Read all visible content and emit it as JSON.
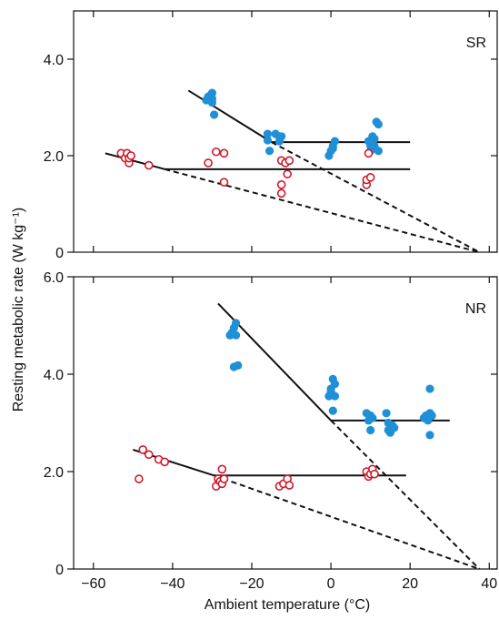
{
  "chart_data": [
    {
      "panel": "SR",
      "type": "scatter",
      "label": "SR",
      "xlim": [
        -65,
        42
      ],
      "ylim": [
        0,
        5.0
      ],
      "yticks": [
        0,
        2.0,
        4.0
      ],
      "ytick_labels": [
        "0",
        "2.0",
        "4.0"
      ],
      "series": [
        {
          "style": "filled",
          "color": "#1f8fd8",
          "points": [
            [
              -31.5,
              3.15
            ],
            [
              -31,
              3.22
            ],
            [
              -30.5,
              3.25
            ],
            [
              -30,
              3.3
            ],
            [
              -30,
              3.1
            ],
            [
              -30,
              3.18
            ],
            [
              -29.5,
              2.85
            ],
            [
              -16,
              2.45
            ],
            [
              -16,
              2.32
            ],
            [
              -15.5,
              2.1
            ],
            [
              -14,
              2.45
            ],
            [
              -13,
              2.4
            ],
            [
              -13,
              2.3
            ],
            [
              -12.5,
              2.4
            ],
            [
              0,
              2.1
            ],
            [
              0.5,
              2.2
            ],
            [
              0.5,
              2.15
            ],
            [
              1,
              2.3
            ],
            [
              -0.5,
              2.0
            ],
            [
              9.5,
              2.3
            ],
            [
              10,
              2.2
            ],
            [
              10.5,
              2.4
            ],
            [
              11,
              2.35
            ],
            [
              11.5,
              2.7
            ],
            [
              12,
              2.65
            ],
            [
              12,
              2.1
            ],
            [
              11,
              2.2
            ],
            [
              10,
              2.1
            ]
          ]
        },
        {
          "style": "open",
          "color": "#d0182a",
          "points": [
            [
              -53,
              2.05
            ],
            [
              -52,
              1.95
            ],
            [
              -51.5,
              2.05
            ],
            [
              -51,
              1.85
            ],
            [
              -51,
              1.95
            ],
            [
              -50.5,
              2.0
            ],
            [
              -46,
              1.8
            ],
            [
              -31,
              1.85
            ],
            [
              -29,
              2.08
            ],
            [
              -27,
              2.05
            ],
            [
              -27,
              1.45
            ],
            [
              -12.5,
              1.9
            ],
            [
              -12.5,
              1.4
            ],
            [
              -12.5,
              1.22
            ],
            [
              -11.5,
              1.85
            ],
            [
              -11,
              1.62
            ],
            [
              -10.5,
              1.9
            ],
            [
              9,
              1.4
            ],
            [
              9,
              1.5
            ],
            [
              9.5,
              2.05
            ],
            [
              10,
              1.55
            ]
          ]
        }
      ],
      "fit_lines": [
        {
          "style": "solid",
          "points": [
            [
              -36,
              3.35
            ],
            [
              -15,
              2.28
            ]
          ]
        },
        {
          "style": "solid",
          "points": [
            [
              -15,
              2.28
            ],
            [
              20,
              2.28
            ]
          ]
        },
        {
          "style": "solid",
          "points": [
            [
              -57,
              2.05
            ],
            [
              -42,
              1.72
            ]
          ]
        },
        {
          "style": "solid",
          "points": [
            [
              -42,
              1.72
            ],
            [
              20,
              1.72
            ]
          ]
        },
        {
          "style": "dashed",
          "points": [
            [
              -15,
              2.28
            ],
            [
              37.5,
              0
            ]
          ]
        },
        {
          "style": "dashed",
          "points": [
            [
              -42,
              1.72
            ],
            [
              37.5,
              0
            ]
          ]
        }
      ]
    },
    {
      "panel": "NR",
      "type": "scatter",
      "label": "NR",
      "xlim": [
        -65,
        42
      ],
      "ylim": [
        0,
        6.0
      ],
      "yticks": [
        0,
        2.0,
        4.0,
        6.0
      ],
      "ytick_labels": [
        "0",
        "2.0",
        "4.0",
        "6.0"
      ],
      "xticks": [
        -60,
        -40,
        -20,
        0,
        20,
        40
      ],
      "xtick_labels": [
        "−60",
        "−40",
        "−20",
        "0",
        "20",
        "40"
      ],
      "series": [
        {
          "style": "filled",
          "color": "#1f8fd8",
          "points": [
            [
              -25.5,
              4.8
            ],
            [
              -25,
              4.85
            ],
            [
              -24.5,
              4.95
            ],
            [
              -24,
              5.05
            ],
            [
              -24,
              4.8
            ],
            [
              -24.5,
              4.15
            ],
            [
              -23.5,
              4.18
            ],
            [
              -0.5,
              3.55
            ],
            [
              0,
              3.65
            ],
            [
              0,
              3.7
            ],
            [
              0.5,
              3.9
            ],
            [
              1,
              3.8
            ],
            [
              1,
              3.55
            ],
            [
              0.5,
              3.25
            ],
            [
              9,
              3.2
            ],
            [
              9.5,
              3.05
            ],
            [
              10,
              3.15
            ],
            [
              10,
              2.85
            ],
            [
              10.5,
              3.1
            ],
            [
              14,
              3.2
            ],
            [
              14.5,
              3.0
            ],
            [
              14.5,
              2.85
            ],
            [
              15,
              2.8
            ],
            [
              15,
              2.9
            ],
            [
              15.5,
              2.95
            ],
            [
              16,
              2.9
            ],
            [
              23.5,
              3.1
            ],
            [
              24,
              3.15
            ],
            [
              24.5,
              3.05
            ],
            [
              25,
              3.7
            ],
            [
              25,
              3.2
            ],
            [
              25.5,
              3.15
            ],
            [
              25,
              2.75
            ]
          ]
        },
        {
          "style": "open",
          "color": "#d0182a",
          "points": [
            [
              -48.5,
              1.85
            ],
            [
              -47.5,
              2.45
            ],
            [
              -46,
              2.35
            ],
            [
              -43.5,
              2.25
            ],
            [
              -42,
              2.2
            ],
            [
              -29,
              1.7
            ],
            [
              -28.5,
              1.85
            ],
            [
              -28,
              1.8
            ],
            [
              -27.5,
              2.05
            ],
            [
              -27.5,
              1.75
            ],
            [
              -27,
              1.85
            ],
            [
              -13,
              1.7
            ],
            [
              -12,
              1.75
            ],
            [
              -11,
              1.85
            ],
            [
              -10.5,
              1.72
            ],
            [
              9,
              2.0
            ],
            [
              9.5,
              1.9
            ],
            [
              10,
              1.95
            ],
            [
              10.5,
              2.05
            ],
            [
              11,
              1.95
            ]
          ]
        }
      ],
      "fit_lines": [
        {
          "style": "solid",
          "points": [
            [
              -28.5,
              5.45
            ],
            [
              0,
              3.05
            ]
          ]
        },
        {
          "style": "solid",
          "points": [
            [
              0,
              3.05
            ],
            [
              30,
              3.05
            ]
          ]
        },
        {
          "style": "solid",
          "points": [
            [
              -50,
              2.45
            ],
            [
              -29.5,
              1.92
            ]
          ]
        },
        {
          "style": "solid",
          "points": [
            [
              -29.5,
              1.92
            ],
            [
              19,
              1.92
            ]
          ]
        },
        {
          "style": "dashed",
          "points": [
            [
              0,
              3.05
            ],
            [
              37.5,
              0
            ]
          ]
        },
        {
          "style": "dashed",
          "points": [
            [
              -29.5,
              1.92
            ],
            [
              37.5,
              0
            ]
          ]
        }
      ]
    }
  ],
  "axes": {
    "xlabel": "Ambient temperature (°C)",
    "ylabel": "Resting metabolic rate (W kg⁻¹)"
  }
}
